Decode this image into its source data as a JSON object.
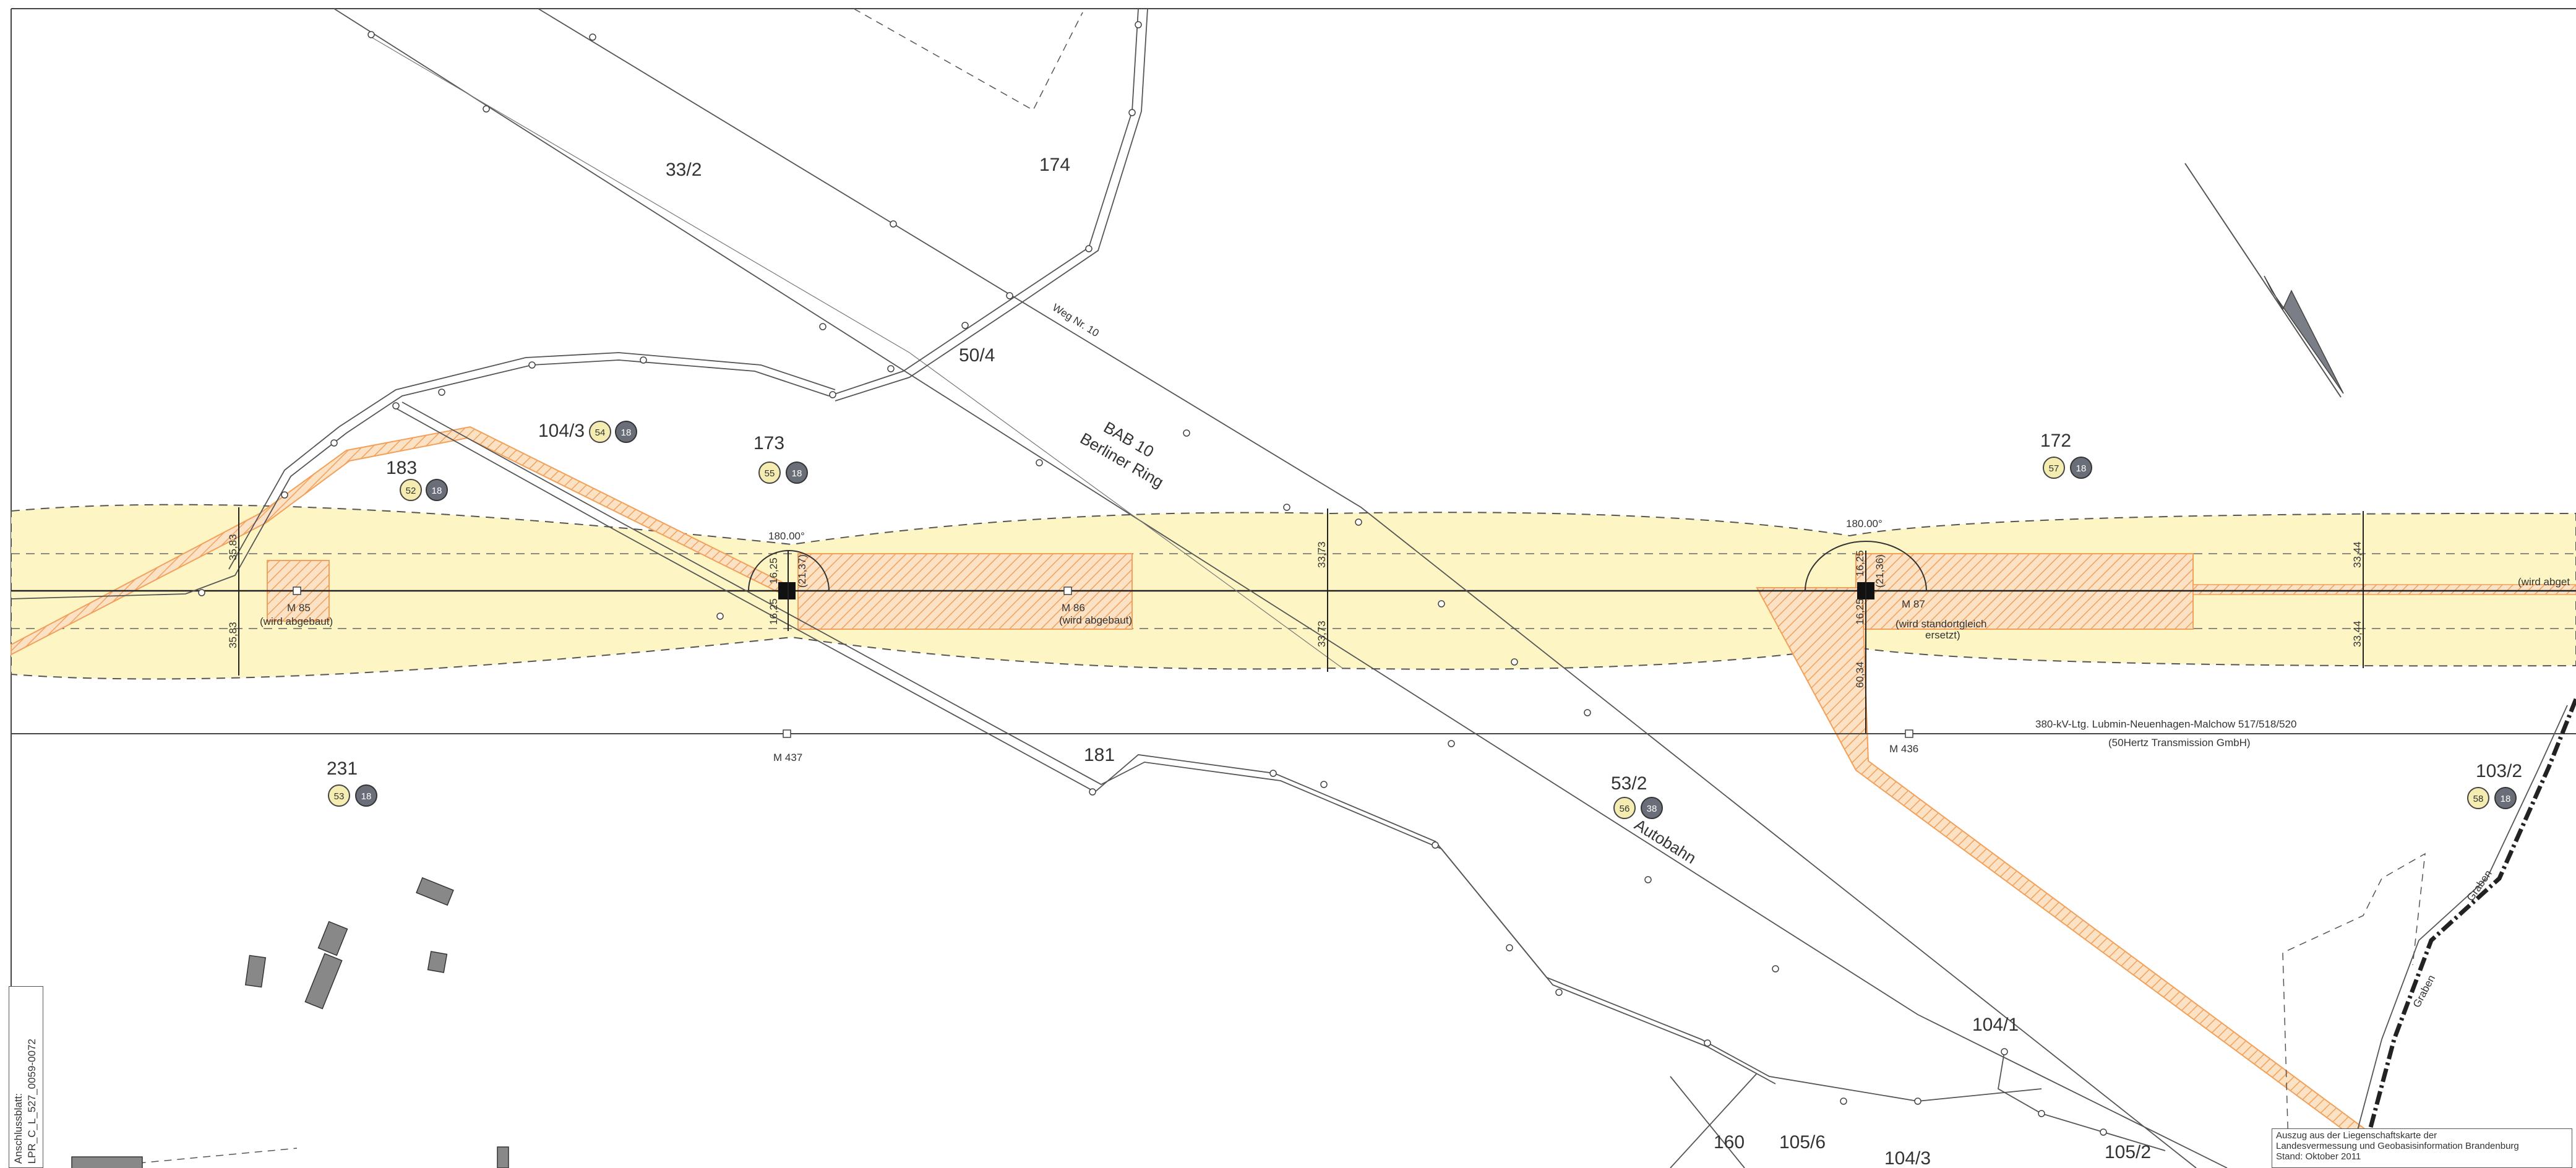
{
  "map": {
    "parcels": [
      "33/2",
      "174",
      "50/4",
      "173",
      "172",
      "104/3",
      "183",
      "231",
      "181",
      "53/2",
      "103/2",
      "104/1",
      "160",
      "105/6",
      "104/3",
      "105/2"
    ],
    "badges": [
      {
        "a": "54",
        "b": "18"
      },
      {
        "a": "52",
        "b": "18"
      },
      {
        "a": "55",
        "b": "18"
      },
      {
        "a": "57",
        "b": "18"
      },
      {
        "a": "53",
        "b": "18"
      },
      {
        "a": "56",
        "b": "38"
      },
      {
        "a": "58",
        "b": "18"
      }
    ],
    "roads": {
      "way": "Weg Nr. 10",
      "bab": "BAB 10",
      "ring": "Berliner Ring",
      "autobahn": "Autobahn"
    },
    "masts": {
      "m85": "M 85",
      "m85_note": "(wird abgebaut)",
      "m86": "M 86",
      "m86_note": "(wird abgebaut)",
      "m87": "M 87",
      "m87_note1": "(wird standortgleich",
      "m87_note2": "ersetzt)",
      "m437": "M 437",
      "m436": "M 436",
      "m_right_note": "(wird abget"
    },
    "angles": {
      "left": "180.00°",
      "right": "180.00°"
    },
    "dims": {
      "a": "33,73",
      "b": "33,73",
      "c": "33,44",
      "d": "33,44",
      "e": "35,83",
      "f": "35,83",
      "g": "16,25",
      "h": "16,25",
      "i": "16,25",
      "j": "16,25",
      "k": "60,34",
      "l": "(21,37)",
      "m": "(21,36)"
    },
    "line_label": "380-kV-Ltg. Lubmin-Neuenhagen-Malchow  517/518/520",
    "line_owner": "(50Hertz Transmission GmbH)",
    "ditch": "Graben",
    "credit": [
      "Auszug aus der Liegenschaftskarte der",
      "Landesvermessung und Geobasisinformation Brandenburg",
      "Stand: Oktober 2011"
    ],
    "sheet": [
      "Anschlussblatt:",
      "LPR_C_L_527_0059-0072"
    ],
    "colors": {
      "corridor": "#fdf5c4",
      "hatch": "#f2a05a",
      "badge_yellow": "#f4ecb0",
      "badge_gray": "#6a6e78"
    }
  }
}
